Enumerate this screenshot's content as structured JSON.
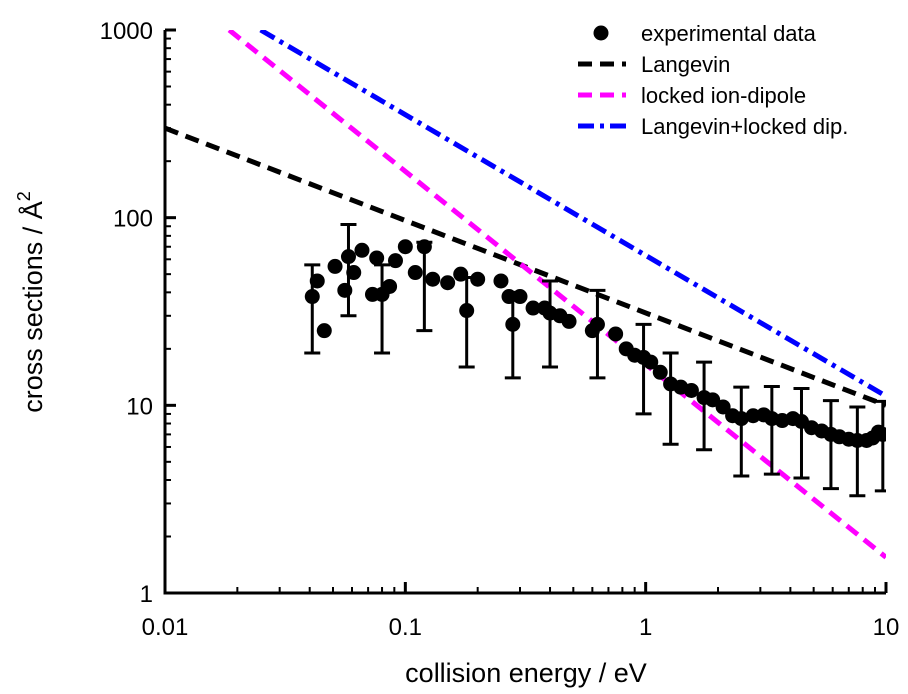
{
  "chart_data": {
    "type": "scatter",
    "xlabel": "collision energy / eV",
    "ylabel": "cross sections / Å",
    "ylabel_sup": "2",
    "x_scale": "log",
    "y_scale": "log",
    "xlim": [
      0.01,
      10
    ],
    "ylim": [
      1,
      1000
    ],
    "x_ticks": [
      0.01,
      0.1,
      1,
      10
    ],
    "x_tick_labels": [
      "0.01",
      "0.1",
      "1",
      "10"
    ],
    "y_ticks": [
      1,
      10,
      100,
      1000
    ],
    "y_tick_labels": [
      "1",
      "10",
      "100",
      "1000"
    ],
    "legend_position": "top-right",
    "series": [
      {
        "name": "experimental data",
        "style": "markers-with-errorbars",
        "color": "#000000",
        "points": [
          {
            "x": 0.041,
            "y": 38,
            "err_low": 19,
            "err_high": 56
          },
          {
            "x": 0.043,
            "y": 46
          },
          {
            "x": 0.046,
            "y": 25
          },
          {
            "x": 0.051,
            "y": 55
          },
          {
            "x": 0.056,
            "y": 41
          },
          {
            "x": 0.058,
            "y": 62,
            "err_low": 30,
            "err_high": 92
          },
          {
            "x": 0.061,
            "y": 51
          },
          {
            "x": 0.066,
            "y": 67
          },
          {
            "x": 0.073,
            "y": 39
          },
          {
            "x": 0.076,
            "y": 61
          },
          {
            "x": 0.08,
            "y": 39,
            "err_low": 19,
            "err_high": 56
          },
          {
            "x": 0.086,
            "y": 43
          },
          {
            "x": 0.091,
            "y": 59
          },
          {
            "x": 0.1,
            "y": 70
          },
          {
            "x": 0.11,
            "y": 51
          },
          {
            "x": 0.12,
            "y": 70,
            "err_low": 25,
            "err_high": 74
          },
          {
            "x": 0.13,
            "y": 47
          },
          {
            "x": 0.15,
            "y": 45
          },
          {
            "x": 0.17,
            "y": 50
          },
          {
            "x": 0.18,
            "y": 32,
            "err_low": 16,
            "err_high": 48
          },
          {
            "x": 0.2,
            "y": 47
          },
          {
            "x": 0.25,
            "y": 46
          },
          {
            "x": 0.27,
            "y": 38
          },
          {
            "x": 0.28,
            "y": 27,
            "err_low": 14,
            "err_high": 40
          },
          {
            "x": 0.3,
            "y": 38
          },
          {
            "x": 0.34,
            "y": 33
          },
          {
            "x": 0.38,
            "y": 33
          },
          {
            "x": 0.4,
            "y": 31,
            "err_low": 16,
            "err_high": 46
          },
          {
            "x": 0.44,
            "y": 30
          },
          {
            "x": 0.48,
            "y": 28
          },
          {
            "x": 0.6,
            "y": 25
          },
          {
            "x": 0.63,
            "y": 27,
            "err_low": 14,
            "err_high": 41
          },
          {
            "x": 0.75,
            "y": 24
          },
          {
            "x": 0.83,
            "y": 20
          },
          {
            "x": 0.9,
            "y": 18.5
          },
          {
            "x": 0.98,
            "y": 18,
            "err_low": 9,
            "err_high": 27
          },
          {
            "x": 1.05,
            "y": 17
          },
          {
            "x": 1.15,
            "y": 15
          },
          {
            "x": 1.27,
            "y": 13,
            "err_low": 6.2,
            "err_high": 19
          },
          {
            "x": 1.4,
            "y": 12.5
          },
          {
            "x": 1.55,
            "y": 12
          },
          {
            "x": 1.75,
            "y": 11,
            "err_low": 5.8,
            "err_high": 17
          },
          {
            "x": 1.9,
            "y": 10.7
          },
          {
            "x": 2.1,
            "y": 9.8
          },
          {
            "x": 2.3,
            "y": 8.8
          },
          {
            "x": 2.5,
            "y": 8.5,
            "err_low": 4.2,
            "err_high": 12.5
          },
          {
            "x": 2.8,
            "y": 8.8
          },
          {
            "x": 3.1,
            "y": 8.9
          },
          {
            "x": 3.35,
            "y": 8.5,
            "err_low": 4.3,
            "err_high": 12.6
          },
          {
            "x": 3.7,
            "y": 8.3
          },
          {
            "x": 4.1,
            "y": 8.5
          },
          {
            "x": 4.45,
            "y": 8.2,
            "err_low": 4.1,
            "err_high": 12.3
          },
          {
            "x": 4.9,
            "y": 7.6
          },
          {
            "x": 5.4,
            "y": 7.3
          },
          {
            "x": 5.9,
            "y": 7.0,
            "err_low": 3.6,
            "err_high": 10.6
          },
          {
            "x": 6.4,
            "y": 6.8
          },
          {
            "x": 7.0,
            "y": 6.6
          },
          {
            "x": 7.6,
            "y": 6.5,
            "err_low": 3.3,
            "err_high": 9.8
          },
          {
            "x": 8.3,
            "y": 6.5
          },
          {
            "x": 8.8,
            "y": 6.7
          },
          {
            "x": 9.3,
            "y": 7.2
          },
          {
            "x": 9.7,
            "y": 7.0,
            "err_low": 3.5,
            "err_high": 10.5
          }
        ]
      },
      {
        "name": "Langevin",
        "style": "dash",
        "color": "#000000",
        "x": [
          0.01,
          10
        ],
        "y": [
          300,
          10
        ]
      },
      {
        "name": "locked ion-dipole",
        "style": "dash",
        "color": "#ff00ff",
        "x": [
          0.0185,
          10
        ],
        "y": [
          1000,
          1.55
        ]
      },
      {
        "name": "Langevin+locked dip.",
        "style": "dash-dot",
        "color": "#0000ff",
        "x": [
          0.025,
          10
        ],
        "y": [
          1000,
          11.2
        ]
      }
    ]
  }
}
